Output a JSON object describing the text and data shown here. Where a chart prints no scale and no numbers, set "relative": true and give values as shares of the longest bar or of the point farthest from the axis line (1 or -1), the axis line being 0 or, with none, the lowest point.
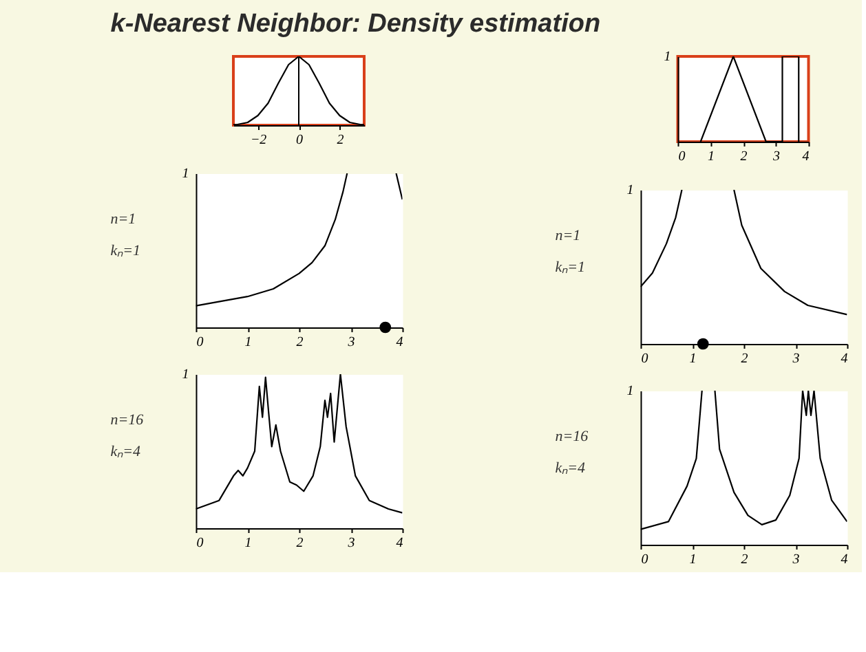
{
  "chart_data": [
    {
      "type": "line",
      "title": "k-Nearest Neighbor: Density estimation",
      "relative": true,
      "tick_labels": "x",
      "xlim": [
        -3.2,
        3.2
      ],
      "xticks": [
        -2,
        0,
        2
      ],
      "series": [
        {
          "color": "#000000",
          "x": [
            -3.2,
            -3.0,
            -2.5,
            -2.0,
            -1.5,
            -1.0,
            -0.5,
            0,
            0.5,
            1.0,
            1.5,
            2.0,
            2.5,
            3.0,
            3.2
          ],
          "values": [
            0.006,
            0.01,
            0.04,
            0.14,
            0.32,
            0.61,
            0.88,
            1,
            0.88,
            0.61,
            0.32,
            0.14,
            0.04,
            0.01,
            0.006
          ]
        }
      ],
      "ref_lines": [
        {
          "axis": "x",
          "value": 0,
          "color": "#000000"
        }
      ]
    },
    {
      "type": "line",
      "relative": true,
      "xlim": [
        0,
        4
      ],
      "xticks": [
        0,
        1,
        2,
        3,
        4
      ],
      "annotations": [
        "1"
      ],
      "series": [
        {
          "color": "#000000",
          "x": [
            0.7,
            1.7,
            2.7,
            3.2,
            3.2,
            3.7,
            3.7
          ],
          "values": [
            0,
            1,
            0,
            0,
            1,
            1,
            0
          ]
        }
      ]
    },
    {
      "type": "line",
      "relative": true,
      "xlim": [
        0,
        4
      ],
      "xticks": [
        0,
        1,
        2,
        3,
        4
      ],
      "annotations": [
        "1",
        "n=1",
        "kₙ=1"
      ],
      "series": [
        {
          "color": "#000000",
          "x": [
            0,
            0.5,
            1.0,
            1.5,
            2.0,
            2.25,
            2.5,
            2.7,
            2.85,
            2.93,
            null,
            3.88,
            4.0
          ],
          "values": [
            0.14,
            0.17,
            0.2,
            0.25,
            0.35,
            0.42,
            0.53,
            0.7,
            0.88,
            1.0,
            null,
            1.0,
            0.83
          ]
        },
        {
          "type": "scatter",
          "marker": "circle",
          "color": "#000000",
          "x": [
            3.67
          ],
          "values": [
            0
          ]
        }
      ]
    },
    {
      "type": "line",
      "relative": true,
      "xlim": [
        0,
        4
      ],
      "xticks": [
        0,
        1,
        2,
        3,
        4
      ],
      "annotations": [
        "1",
        "n=1",
        "kₙ=1"
      ],
      "series": [
        {
          "color": "#000000",
          "x": [
            0,
            0.23,
            0.5,
            0.68,
            0.8,
            null,
            1.81,
            1.96,
            2.33,
            2.79,
            3.24,
            4.0
          ],
          "values": [
            0.37,
            0.46,
            0.65,
            0.82,
            1.0,
            null,
            1.0,
            0.77,
            0.49,
            0.34,
            0.25,
            0.19
          ]
        },
        {
          "type": "scatter",
          "marker": "circle",
          "color": "#000000",
          "x": [
            1.21
          ],
          "values": [
            0
          ]
        }
      ]
    },
    {
      "type": "line",
      "relative": true,
      "xlim": [
        0,
        4
      ],
      "xticks": [
        0,
        1,
        2,
        3,
        4
      ],
      "annotations": [
        "1",
        "n=16",
        "kₙ=4"
      ],
      "series": [
        {
          "color": "#000000",
          "x": [
            0,
            0.45,
            0.73,
            0.82,
            0.91,
            1.0,
            1.14,
            1.23,
            1.29,
            1.35,
            1.41,
            1.47,
            1.55,
            1.64,
            1.82,
            1.95,
            2.09,
            2.27,
            2.41,
            2.5,
            2.55,
            2.61,
            2.68,
            2.8,
            2.91,
            3.09,
            3.36,
            3.73,
            4.0
          ],
          "values": [
            0.125,
            0.18,
            0.34,
            0.375,
            0.34,
            0.39,
            0.5,
            0.92,
            0.72,
            0.98,
            0.75,
            0.53,
            0.67,
            0.5,
            0.3,
            0.28,
            0.24,
            0.34,
            0.53,
            0.83,
            0.72,
            0.875,
            0.56,
            1.0,
            0.66,
            0.34,
            0.18,
            0.125,
            0.1
          ]
        }
      ]
    },
    {
      "type": "line",
      "relative": true,
      "xlim": [
        0,
        4
      ],
      "xticks": [
        0,
        1,
        2,
        3,
        4
      ],
      "annotations": [
        "1",
        "n=16",
        "kₙ=4"
      ],
      "series": [
        {
          "color": "#000000",
          "x": [
            0,
            0.54,
            0.9,
            1.08,
            1.19,
            null,
            1.44,
            1.53,
            1.81,
            2.08,
            2.35,
            2.62,
            2.89,
            3.07,
            3.14,
            3.21,
            3.25,
            3.3,
            3.36,
            3.48,
            3.7,
            4.0
          ],
          "values": [
            0.1,
            0.15,
            0.38,
            0.56,
            1.0,
            null,
            1.0,
            0.62,
            0.34,
            0.19,
            0.13,
            0.16,
            0.32,
            0.56,
            1.0,
            0.84,
            1.0,
            0.84,
            1.0,
            0.56,
            0.29,
            0.15
          ]
        }
      ]
    }
  ]
}
